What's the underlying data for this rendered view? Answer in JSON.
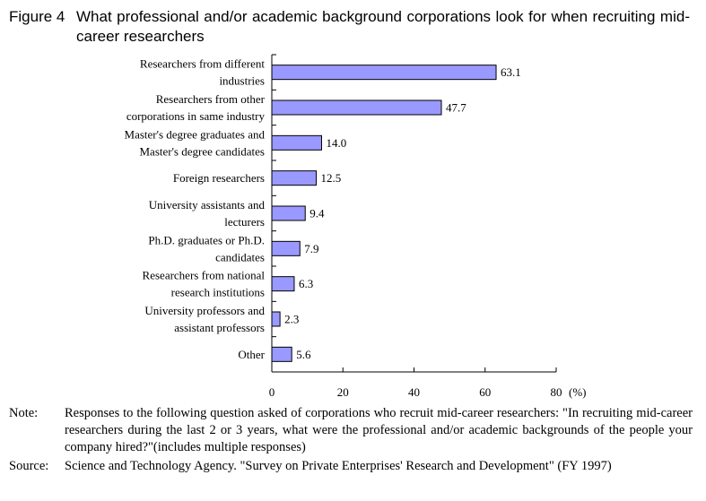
{
  "figure": {
    "label": "Figure 4",
    "title": "What professional and/or academic background corporations look for when recruiting mid-career researchers"
  },
  "chart_data": {
    "type": "bar",
    "orientation": "horizontal",
    "categories": [
      [
        "Researchers from different",
        "industries"
      ],
      [
        "Researchers from other",
        "corporations in same industry"
      ],
      [
        "Master's degree graduates and",
        "Master's degree candidates"
      ],
      [
        "Foreign researchers"
      ],
      [
        "University assistants and",
        "lecturers"
      ],
      [
        "Ph.D. graduates or Ph.D.",
        "candidates"
      ],
      [
        "Researchers from national",
        "research institutions"
      ],
      [
        "University professors and",
        "assistant professors"
      ],
      [
        "Other"
      ]
    ],
    "values": [
      63.1,
      47.7,
      14.0,
      12.5,
      9.4,
      7.9,
      6.3,
      2.3,
      5.6
    ],
    "value_labels": [
      "63.1",
      "47.7",
      "14.0",
      "12.5",
      "9.4",
      "7.9",
      "6.3",
      "2.3",
      "5.6"
    ],
    "xlim": [
      0,
      80
    ],
    "xticks": [
      0,
      20,
      40,
      60,
      80
    ],
    "xtick_labels": [
      "0",
      "20",
      "40",
      "60",
      "80"
    ],
    "xunit": "(%)",
    "bar_color": "#9999ff",
    "grid": false
  },
  "notes": {
    "note_key": "Note:",
    "note_text": "Responses to the following question asked of corporations who recruit mid-career researchers: \"In recruiting mid-career researchers during the last 2 or 3 years, what were the professional and/or academic backgrounds of the people your company hired?\"(includes multiple responses)",
    "source_key": "Source:",
    "source_text": "Science and Technology Agency. \"Survey on Private Enterprises' Research and Development\" (FY 1997)"
  }
}
